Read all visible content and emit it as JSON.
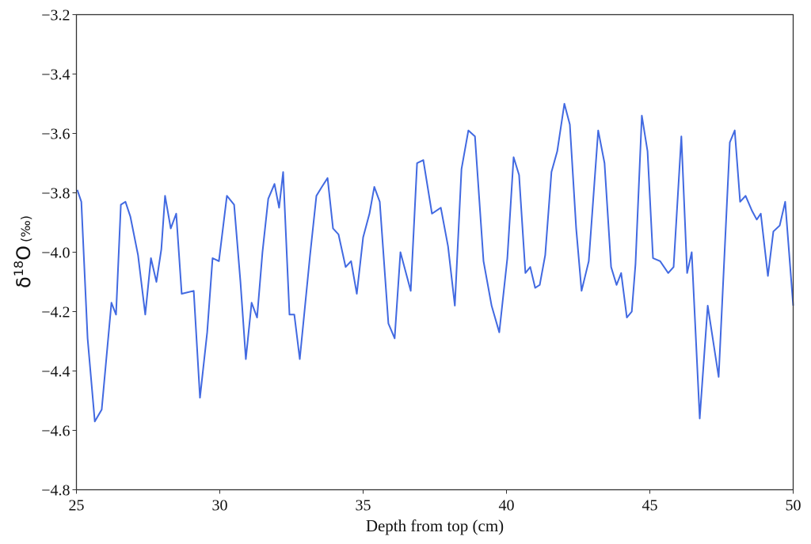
{
  "chart_data": {
    "type": "line",
    "title": "",
    "xlabel": "Depth from top (cm)",
    "ylabel": "δ18O (‰)",
    "ylabel_parts": {
      "symbol": "δ",
      "superscript": "18",
      "element": "O",
      "unit": "(‰)"
    },
    "xlim": [
      25,
      50
    ],
    "ylim": [
      -4.8,
      -3.2
    ],
    "xticks": [
      25,
      30,
      35,
      40,
      45,
      50
    ],
    "xtick_labels": [
      "25",
      "30",
      "35",
      "40",
      "45",
      "50"
    ],
    "yticks": [
      -3.2,
      -3.4,
      -3.6,
      -3.8,
      -4.0,
      -4.2,
      -4.4,
      -4.6,
      -4.8
    ],
    "ytick_labels": [
      "−3.2",
      "−3.4",
      "−3.6",
      "−3.8",
      "−4.0",
      "−4.2",
      "−4.4",
      "−4.6",
      "−4.8"
    ],
    "grid": false,
    "legend": null,
    "line_color": "#4169e1",
    "series": [
      {
        "name": "δ18O",
        "x": [
          25.03,
          25.17,
          25.39,
          25.64,
          25.88,
          26.22,
          26.38,
          26.55,
          26.71,
          26.88,
          27.15,
          27.4,
          27.6,
          27.79,
          27.96,
          28.09,
          28.29,
          28.48,
          28.67,
          29.09,
          29.31,
          29.56,
          29.75,
          29.97,
          30.25,
          30.5,
          30.72,
          30.91,
          31.11,
          31.3,
          31.49,
          31.69,
          31.91,
          32.07,
          32.21,
          32.43,
          32.6,
          32.79,
          33.15,
          33.37,
          33.56,
          33.76,
          33.95,
          34.14,
          34.39,
          34.58,
          34.78,
          35.0,
          35.22,
          35.39,
          35.58,
          35.88,
          36.1,
          36.3,
          36.66,
          36.88,
          37.1,
          37.4,
          37.71,
          37.96,
          38.2,
          38.43,
          38.67,
          38.9,
          39.2,
          39.48,
          39.75,
          40.03,
          40.25,
          40.44,
          40.66,
          40.83,
          41.0,
          41.16,
          41.35,
          41.57,
          41.77,
          42.02,
          42.21,
          42.43,
          42.62,
          42.87,
          43.2,
          43.42,
          43.65,
          43.84,
          44.0,
          44.2,
          44.37,
          44.5,
          44.72,
          44.92,
          45.11,
          45.36,
          45.64,
          45.83,
          46.1,
          46.3,
          46.46,
          46.74,
          47.02,
          47.4,
          47.79,
          47.96,
          48.15,
          48.34,
          48.56,
          48.73,
          48.87,
          49.12,
          49.31,
          49.53,
          49.72,
          50.0
        ],
        "y": [
          -3.79,
          -3.83,
          -4.29,
          -4.57,
          -4.53,
          -4.17,
          -4.21,
          -3.84,
          -3.83,
          -3.88,
          -4.01,
          -4.21,
          -4.02,
          -4.1,
          -3.99,
          -3.81,
          -3.92,
          -3.87,
          -4.14,
          -4.13,
          -4.49,
          -4.27,
          -4.02,
          -4.03,
          -3.81,
          -3.84,
          -4.1,
          -4.36,
          -4.17,
          -4.22,
          -4.0,
          -3.82,
          -3.77,
          -3.85,
          -3.73,
          -4.21,
          -4.21,
          -4.36,
          -4.01,
          -3.81,
          -3.78,
          -3.75,
          -3.92,
          -3.94,
          -4.05,
          -4.03,
          -4.14,
          -3.95,
          -3.87,
          -3.78,
          -3.83,
          -4.24,
          -4.29,
          -4.0,
          -4.13,
          -3.7,
          -3.69,
          -3.87,
          -3.85,
          -3.98,
          -4.18,
          -3.72,
          -3.59,
          -3.61,
          -4.03,
          -4.18,
          -4.27,
          -4.02,
          -3.68,
          -3.74,
          -4.07,
          -4.05,
          -4.12,
          -4.11,
          -4.01,
          -3.73,
          -3.66,
          -3.5,
          -3.57,
          -3.92,
          -4.13,
          -4.03,
          -3.59,
          -3.7,
          -4.05,
          -4.11,
          -4.07,
          -4.22,
          -4.2,
          -4.04,
          -3.54,
          -3.66,
          -4.02,
          -4.03,
          -4.07,
          -4.05,
          -3.61,
          -4.07,
          -4.0,
          -4.56,
          -4.18,
          -4.42,
          -3.63,
          -3.59,
          -3.83,
          -3.81,
          -3.86,
          -3.89,
          -3.87,
          -4.08,
          -3.93,
          -3.91,
          -3.83,
          -4.18
        ]
      }
    ]
  }
}
